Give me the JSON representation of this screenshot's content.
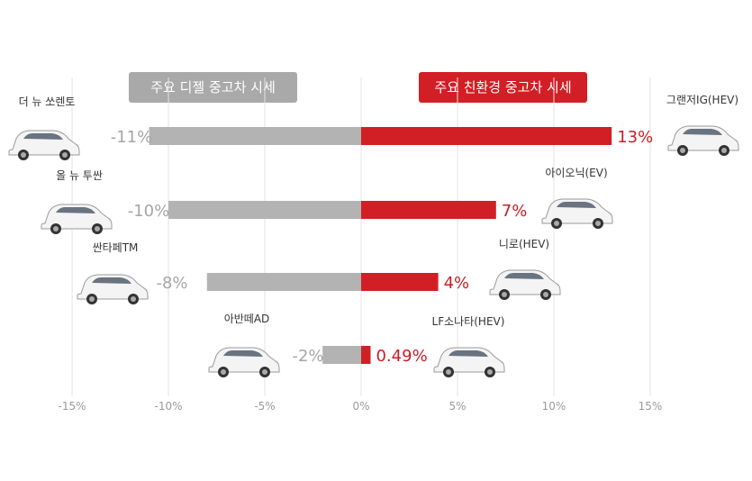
{
  "headers": {
    "left": "주요 디젤 중고차 시세",
    "right": "주요 친환경 중고차 시세"
  },
  "colors": {
    "diesel": "#b3b3b3",
    "eco": "#d11f25",
    "diesel_label": "#a6a6a6",
    "eco_label": "#c81e24",
    "grid": "#e3e3e3"
  },
  "chart_data": {
    "type": "bar",
    "orientation": "horizontal",
    "xlim": [
      -15,
      15
    ],
    "x_ticks": [
      "-15%",
      "-10%",
      "-5%",
      "0%",
      "5%",
      "10%",
      "15%"
    ],
    "grid": true,
    "rows": [
      {
        "diesel_name": "더 뉴 쏘렌토",
        "diesel_value": -11,
        "diesel_label": "-11%",
        "eco_name": "그랜저IG(HEV)",
        "eco_value": 13,
        "eco_label": "13%"
      },
      {
        "diesel_name": "올 뉴 투싼",
        "diesel_value": -10,
        "diesel_label": "-10%",
        "eco_name": "아이오닉(EV)",
        "eco_value": 7,
        "eco_label": "7%"
      },
      {
        "diesel_name": "싼타페TM",
        "diesel_value": -8,
        "diesel_label": "-8%",
        "eco_name": "니로(HEV)",
        "eco_value": 4,
        "eco_label": "4%"
      },
      {
        "diesel_name": "아반떼AD",
        "diesel_value": -2,
        "diesel_label": "-2%",
        "eco_name": "LF소나타(HEV)",
        "eco_value": 0.49,
        "eco_label": "0.49%"
      }
    ]
  }
}
